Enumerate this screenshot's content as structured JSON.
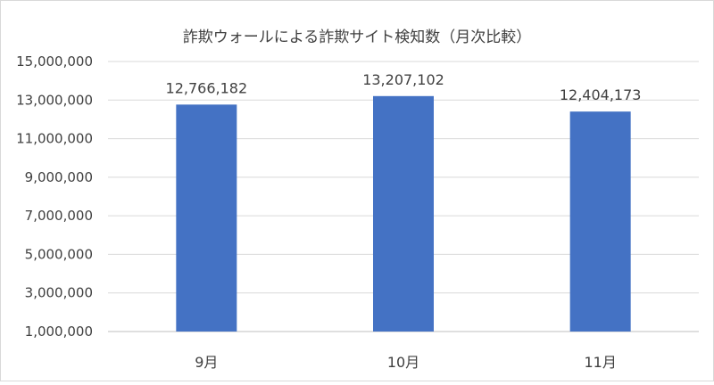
{
  "chart_data": {
    "type": "bar",
    "title": "詐欺ウォールによる詐欺サイト検知数（月次比較）",
    "categories": [
      "9月",
      "10月",
      "11月"
    ],
    "values": [
      12766182,
      13207102,
      12404173
    ],
    "value_labels": [
      "12,766,182",
      "13,207,102",
      "12,404,173"
    ],
    "ylim": [
      1000000,
      15000000
    ],
    "yticks": [
      1000000,
      3000000,
      5000000,
      7000000,
      9000000,
      11000000,
      13000000,
      15000000
    ],
    "ytick_labels": [
      "1,000,000",
      "3,000,000",
      "5,000,000",
      "7,000,000",
      "9,000,000",
      "11,000,000",
      "13,000,000",
      "15,000,000"
    ],
    "xlabel": "",
    "ylabel": "",
    "bar_color": "#4472C4",
    "grid": true,
    "legend": "none"
  }
}
